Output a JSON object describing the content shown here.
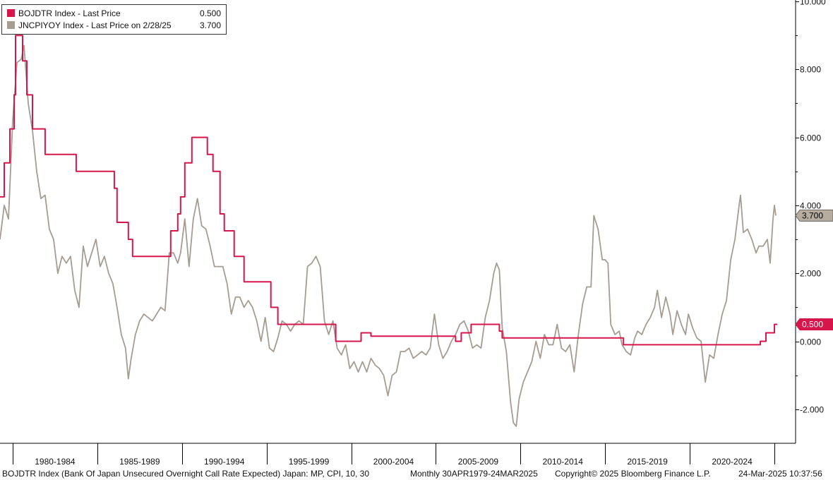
{
  "chart_data": {
    "type": "line",
    "y_axis": {
      "side": "right",
      "min": -3.0,
      "max": 10.0,
      "ticks": [
        -2.0,
        0.0,
        2.0,
        4.0,
        6.0,
        8.0,
        10.0
      ],
      "tick_labels": [
        "-2.000",
        "0.000",
        "2.000",
        "4.000",
        "6.000",
        "8.000",
        "10.000"
      ]
    },
    "x_axis": {
      "start": "1979-04",
      "end": "2025-03",
      "major_ticks": [
        "1980-01",
        "1985-01",
        "1990-01",
        "1995-01",
        "2000-01",
        "2005-01",
        "2010-01",
        "2015-01",
        "2020-01",
        "2025-01"
      ],
      "period_labels": [
        {
          "label": "1980-1984",
          "from": "1980-01",
          "to": "1985-01"
        },
        {
          "label": "1985-1989",
          "from": "1985-01",
          "to": "1990-01"
        },
        {
          "label": "1990-1994",
          "from": "1990-01",
          "to": "1995-01"
        },
        {
          "label": "1995-1999",
          "from": "1995-01",
          "to": "2000-01"
        },
        {
          "label": "2000-2004",
          "from": "2000-01",
          "to": "2005-01"
        },
        {
          "label": "2005-2009",
          "from": "2005-01",
          "to": "2010-01"
        },
        {
          "label": "2010-2014",
          "from": "2010-01",
          "to": "2015-01"
        },
        {
          "label": "2015-2019",
          "from": "2015-01",
          "to": "2020-01"
        },
        {
          "label": "2020-2024",
          "from": "2020-01",
          "to": "2025-01"
        }
      ]
    },
    "grid": false,
    "legend": {
      "position": "top-left",
      "entries": [
        {
          "label": "BOJDTR Index - Last Price",
          "value": "0.500",
          "color": "#d6164b"
        },
        {
          "label": "JNCPIYOY Index - Last Price on 2/28/25",
          "value": "3.700",
          "color": "#a59c92"
        }
      ]
    },
    "last_value_tags": [
      {
        "series": "BOJDTR Index",
        "text": "0.500",
        "value": 0.5,
        "bg": "#d6164b",
        "fg": "#ffffff"
      },
      {
        "series": "JNCPIYOY Index",
        "text": "3.700",
        "value": 3.7,
        "bg": "#b6aca0",
        "fg": "#000000"
      }
    ],
    "series": [
      {
        "name": "BOJDTR Index",
        "color": "#d6164b",
        "step": true,
        "points": [
          [
            "1979-04",
            4.25
          ],
          [
            "1979-07",
            5.25
          ],
          [
            "1979-11",
            6.25
          ],
          [
            "1980-02",
            7.25
          ],
          [
            "1980-03",
            9.0
          ],
          [
            "1980-08",
            8.25
          ],
          [
            "1980-11",
            7.25
          ],
          [
            "1981-03",
            6.25
          ],
          [
            "1981-12",
            5.5
          ],
          [
            "1983-10",
            5.0
          ],
          [
            "1986-01",
            4.5
          ],
          [
            "1986-03",
            3.5
          ],
          [
            "1986-11",
            3.0
          ],
          [
            "1987-02",
            2.5
          ],
          [
            "1989-05",
            3.25
          ],
          [
            "1989-10",
            3.75
          ],
          [
            "1989-12",
            4.25
          ],
          [
            "1990-03",
            5.25
          ],
          [
            "1990-08",
            6.0
          ],
          [
            "1991-07",
            5.5
          ],
          [
            "1991-11",
            5.0
          ],
          [
            "1992-04",
            3.75
          ],
          [
            "1992-07",
            3.25
          ],
          [
            "1993-02",
            2.5
          ],
          [
            "1993-09",
            1.75
          ],
          [
            "1995-04",
            1.0
          ],
          [
            "1995-09",
            0.5
          ],
          [
            "1999-02",
            0.0
          ],
          [
            "2000-08",
            0.25
          ],
          [
            "2001-03",
            0.15
          ],
          [
            "2001-05",
            0.15
          ],
          [
            "2006-03",
            0.0
          ],
          [
            "2006-07",
            0.25
          ],
          [
            "2007-02",
            0.5
          ],
          [
            "2008-10",
            0.3
          ],
          [
            "2008-12",
            0.1
          ],
          [
            "2016-02",
            -0.1
          ],
          [
            "2024-03",
            0.0
          ],
          [
            "2024-07",
            0.25
          ],
          [
            "2025-01",
            0.5
          ],
          [
            "2025-03",
            0.5
          ]
        ]
      },
      {
        "name": "JNCPIYOY Index",
        "color": "#a59c92",
        "step": false,
        "points": [
          [
            "1979-04",
            3.0
          ],
          [
            "1979-07",
            4.0
          ],
          [
            "1979-10",
            3.6
          ],
          [
            "1980-01",
            6.5
          ],
          [
            "1980-04",
            8.2
          ],
          [
            "1980-07",
            8.3
          ],
          [
            "1980-09",
            8.7
          ],
          [
            "1980-12",
            7.0
          ],
          [
            "1981-03",
            6.2
          ],
          [
            "1981-06",
            5.0
          ],
          [
            "1981-09",
            4.2
          ],
          [
            "1981-12",
            4.3
          ],
          [
            "1982-03",
            3.3
          ],
          [
            "1982-06",
            3.0
          ],
          [
            "1982-09",
            2.0
          ],
          [
            "1982-12",
            2.5
          ],
          [
            "1983-03",
            2.3
          ],
          [
            "1983-06",
            2.5
          ],
          [
            "1983-09",
            1.5
          ],
          [
            "1983-12",
            1.0
          ],
          [
            "1984-03",
            2.8
          ],
          [
            "1984-06",
            2.2
          ],
          [
            "1984-09",
            2.6
          ],
          [
            "1984-12",
            3.0
          ],
          [
            "1985-03",
            2.2
          ],
          [
            "1985-06",
            2.5
          ],
          [
            "1985-09",
            2.0
          ],
          [
            "1985-12",
            1.7
          ],
          [
            "1986-03",
            1.0
          ],
          [
            "1986-06",
            0.2
          ],
          [
            "1986-09",
            -0.2
          ],
          [
            "1986-11",
            -1.1
          ],
          [
            "1987-01",
            -0.5
          ],
          [
            "1987-04",
            0.2
          ],
          [
            "1987-07",
            0.6
          ],
          [
            "1987-10",
            0.8
          ],
          [
            "1988-01",
            0.7
          ],
          [
            "1988-04",
            0.6
          ],
          [
            "1988-07",
            0.8
          ],
          [
            "1988-10",
            1.0
          ],
          [
            "1989-01",
            0.9
          ],
          [
            "1989-04",
            2.6
          ],
          [
            "1989-07",
            2.6
          ],
          [
            "1989-10",
            2.3
          ],
          [
            "1989-12",
            2.6
          ],
          [
            "1990-03",
            3.6
          ],
          [
            "1990-06",
            2.2
          ],
          [
            "1990-09",
            3.6
          ],
          [
            "1990-12",
            4.2
          ],
          [
            "1991-03",
            3.4
          ],
          [
            "1991-06",
            3.3
          ],
          [
            "1991-09",
            2.8
          ],
          [
            "1991-12",
            2.2
          ],
          [
            "1992-03",
            2.2
          ],
          [
            "1992-06",
            2.2
          ],
          [
            "1992-09",
            1.7
          ],
          [
            "1992-12",
            0.8
          ],
          [
            "1993-03",
            1.3
          ],
          [
            "1993-06",
            1.3
          ],
          [
            "1993-09",
            1.0
          ],
          [
            "1993-12",
            1.2
          ],
          [
            "1994-03",
            1.0
          ],
          [
            "1994-06",
            0.6
          ],
          [
            "1994-09",
            0.0
          ],
          [
            "1994-12",
            0.7
          ],
          [
            "1995-03",
            -0.2
          ],
          [
            "1995-06",
            -0.3
          ],
          [
            "1995-09",
            0.1
          ],
          [
            "1995-12",
            0.6
          ],
          [
            "1996-03",
            0.5
          ],
          [
            "1996-06",
            0.3
          ],
          [
            "1996-09",
            0.5
          ],
          [
            "1996-12",
            0.6
          ],
          [
            "1997-03",
            0.5
          ],
          [
            "1997-06",
            2.2
          ],
          [
            "1997-09",
            2.3
          ],
          [
            "1997-12",
            2.5
          ],
          [
            "1998-03",
            2.2
          ],
          [
            "1998-06",
            0.6
          ],
          [
            "1998-09",
            0.2
          ],
          [
            "1998-12",
            0.6
          ],
          [
            "1999-03",
            -0.2
          ],
          [
            "1999-06",
            -0.4
          ],
          [
            "1999-09",
            -0.1
          ],
          [
            "1999-12",
            -0.8
          ],
          [
            "2000-03",
            -0.6
          ],
          [
            "2000-06",
            -0.9
          ],
          [
            "2000-09",
            -0.6
          ],
          [
            "2000-12",
            -0.9
          ],
          [
            "2001-03",
            -0.5
          ],
          [
            "2001-06",
            -0.7
          ],
          [
            "2001-09",
            -0.8
          ],
          [
            "2001-12",
            -1.0
          ],
          [
            "2002-03",
            -1.6
          ],
          [
            "2002-06",
            -1.0
          ],
          [
            "2002-09",
            -0.9
          ],
          [
            "2002-12",
            -0.3
          ],
          [
            "2003-03",
            -0.3
          ],
          [
            "2003-06",
            -0.2
          ],
          [
            "2003-09",
            -0.5
          ],
          [
            "2003-12",
            -0.4
          ],
          [
            "2004-03",
            -0.3
          ],
          [
            "2004-06",
            -0.4
          ],
          [
            "2004-09",
            -0.2
          ],
          [
            "2004-12",
            0.8
          ],
          [
            "2005-03",
            -0.1
          ],
          [
            "2005-06",
            -0.5
          ],
          [
            "2005-09",
            -0.3
          ],
          [
            "2005-12",
            0.0
          ],
          [
            "2006-03",
            0.2
          ],
          [
            "2006-06",
            0.5
          ],
          [
            "2006-09",
            0.6
          ],
          [
            "2006-12",
            0.3
          ],
          [
            "2007-03",
            -0.2
          ],
          [
            "2007-06",
            -0.1
          ],
          [
            "2007-09",
            -0.2
          ],
          [
            "2007-12",
            0.7
          ],
          [
            "2008-03",
            1.2
          ],
          [
            "2008-06",
            2.0
          ],
          [
            "2008-08",
            2.3
          ],
          [
            "2008-10",
            2.1
          ],
          [
            "2008-12",
            0.4
          ],
          [
            "2009-03",
            -0.3
          ],
          [
            "2009-06",
            -1.8
          ],
          [
            "2009-08",
            -2.4
          ],
          [
            "2009-10",
            -2.5
          ],
          [
            "2009-12",
            -1.7
          ],
          [
            "2010-03",
            -1.2
          ],
          [
            "2010-06",
            -0.9
          ],
          [
            "2010-09",
            -0.6
          ],
          [
            "2010-12",
            0.0
          ],
          [
            "2011-03",
            -0.5
          ],
          [
            "2011-06",
            0.2
          ],
          [
            "2011-09",
            -0.1
          ],
          [
            "2011-12",
            -0.1
          ],
          [
            "2012-03",
            0.5
          ],
          [
            "2012-06",
            -0.2
          ],
          [
            "2012-09",
            -0.3
          ],
          [
            "2012-12",
            -0.1
          ],
          [
            "2013-03",
            -0.9
          ],
          [
            "2013-06",
            0.2
          ],
          [
            "2013-09",
            1.1
          ],
          [
            "2013-12",
            1.6
          ],
          [
            "2014-03",
            1.6
          ],
          [
            "2014-05",
            3.7
          ],
          [
            "2014-08",
            3.3
          ],
          [
            "2014-11",
            2.4
          ],
          [
            "2015-01",
            2.4
          ],
          [
            "2015-03",
            2.3
          ],
          [
            "2015-05",
            0.5
          ],
          [
            "2015-08",
            0.2
          ],
          [
            "2015-11",
            0.3
          ],
          [
            "2016-01",
            -0.1
          ],
          [
            "2016-04",
            -0.3
          ],
          [
            "2016-07",
            -0.4
          ],
          [
            "2016-10",
            0.1
          ],
          [
            "2016-12",
            0.3
          ],
          [
            "2017-03",
            0.2
          ],
          [
            "2017-06",
            0.5
          ],
          [
            "2017-09",
            0.7
          ],
          [
            "2017-12",
            1.0
          ],
          [
            "2018-02",
            1.5
          ],
          [
            "2018-05",
            0.7
          ],
          [
            "2018-08",
            1.3
          ],
          [
            "2018-11",
            0.8
          ],
          [
            "2019-01",
            0.2
          ],
          [
            "2019-04",
            0.9
          ],
          [
            "2019-07",
            0.5
          ],
          [
            "2019-10",
            0.2
          ],
          [
            "2019-12",
            0.8
          ],
          [
            "2020-03",
            0.4
          ],
          [
            "2020-06",
            0.1
          ],
          [
            "2020-09",
            0.0
          ],
          [
            "2020-12",
            -1.2
          ],
          [
            "2021-03",
            -0.4
          ],
          [
            "2021-06",
            -0.5
          ],
          [
            "2021-09",
            0.2
          ],
          [
            "2021-12",
            0.8
          ],
          [
            "2022-03",
            1.2
          ],
          [
            "2022-06",
            2.4
          ],
          [
            "2022-09",
            3.0
          ],
          [
            "2022-12",
            4.0
          ],
          [
            "2023-01",
            4.3
          ],
          [
            "2023-03",
            3.2
          ],
          [
            "2023-06",
            3.3
          ],
          [
            "2023-09",
            3.0
          ],
          [
            "2023-12",
            2.6
          ],
          [
            "2024-02",
            2.8
          ],
          [
            "2024-05",
            2.8
          ],
          [
            "2024-08",
            3.0
          ],
          [
            "2024-10",
            2.3
          ],
          [
            "2024-12",
            3.6
          ],
          [
            "2025-01",
            4.0
          ],
          [
            "2025-02",
            3.7
          ]
        ]
      }
    ]
  },
  "footer": {
    "description": "BOJDTR Index (Bank Of Japan Unsecured Overnight Call Rate Expected) Japan: MP, CPI, 10, 30",
    "frequency_range": "Monthly 30APR1979-24MAR2025",
    "copyright": "Copyright© 2025 Bloomberg Finance L.P.",
    "timestamp": "24-Mar-2025 10:37:56"
  }
}
